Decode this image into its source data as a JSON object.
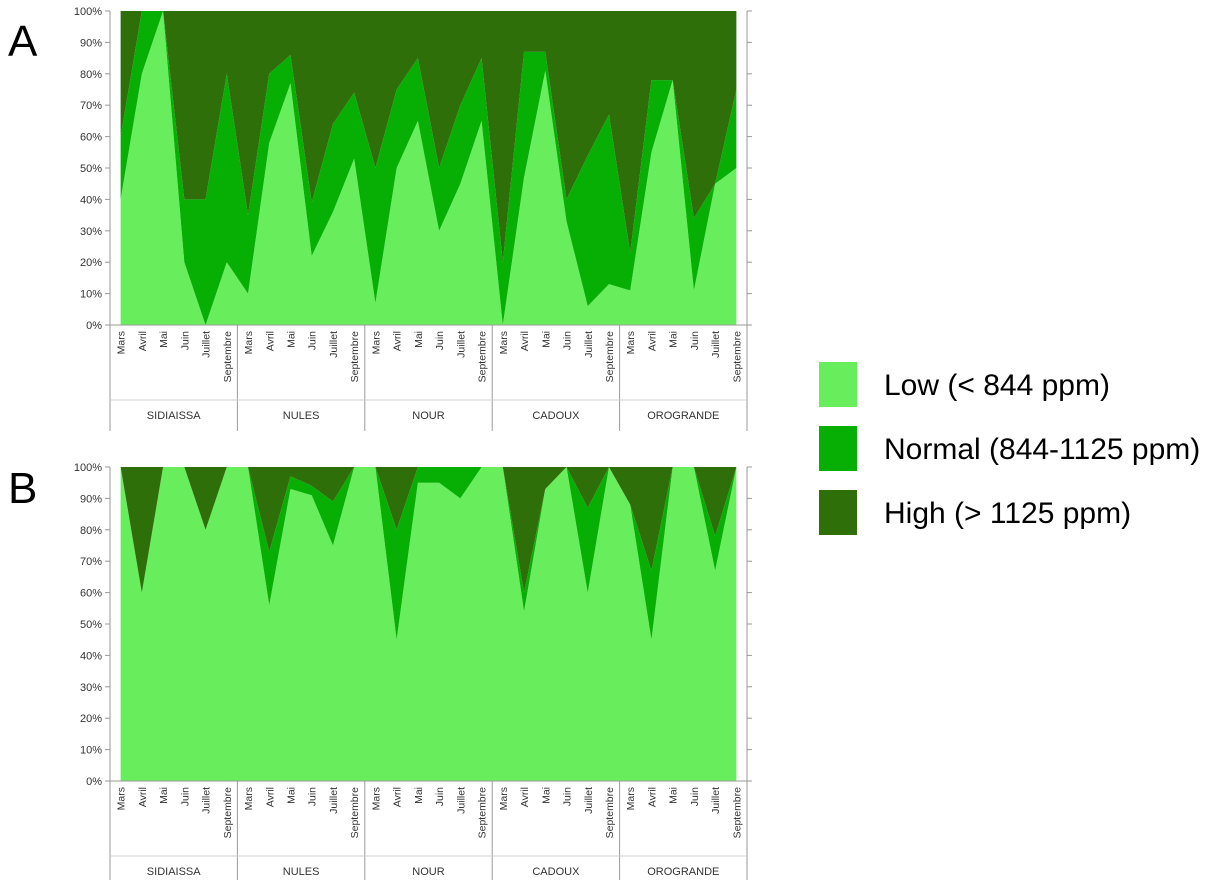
{
  "colors": {
    "low": "#68ee5d",
    "normal": "#07af05",
    "high": "#2f6f0a"
  },
  "legend": [
    {
      "key": "low",
      "label": "Low (< 844 ppm)"
    },
    {
      "key": "normal",
      "label": "Normal (844-1125 ppm)"
    },
    {
      "key": "high",
      "label": "High (> 1125 ppm)"
    }
  ],
  "chart_data": [
    {
      "type": "area",
      "panel": "A",
      "stacked": true,
      "ylim": [
        0,
        100
      ],
      "yticks": [
        "0%",
        "10%",
        "20%",
        "30%",
        "40%",
        "50%",
        "60%",
        "70%",
        "80%",
        "90%",
        "100%"
      ],
      "groups": [
        "SIDIAISSA",
        "NULES",
        "NOUR",
        "CADOUX",
        "OROGRANDE"
      ],
      "months": [
        "Mars",
        "Avril",
        "Mai",
        "Juin",
        "Juillet",
        "Septembre"
      ],
      "series": [
        {
          "name": "Low (< 844 ppm)",
          "key": "low",
          "values": [
            40,
            80,
            100,
            20,
            0,
            20,
            10,
            58,
            77,
            22,
            36,
            53,
            7,
            50,
            65,
            30,
            45,
            65,
            0,
            47,
            81,
            33,
            6,
            13,
            11,
            55,
            78,
            11,
            45,
            50
          ]
        },
        {
          "name": "Normal (844-1125 ppm)",
          "key": "normal",
          "values": [
            20,
            20,
            0,
            20,
            40,
            60,
            25,
            22,
            9,
            17,
            28,
            21,
            43,
            25,
            20,
            20,
            25,
            20,
            20,
            40,
            6,
            7,
            48,
            54,
            12,
            23,
            0,
            23,
            0,
            25
          ]
        },
        {
          "name": "High (> 1125 ppm)",
          "key": "high",
          "values": [
            40,
            0,
            0,
            60,
            60,
            20,
            65,
            20,
            14,
            61,
            36,
            26,
            50,
            25,
            15,
            50,
            30,
            15,
            80,
            13,
            13,
            60,
            46,
            33,
            77,
            22,
            22,
            66,
            55,
            25
          ]
        }
      ]
    },
    {
      "type": "area",
      "panel": "B",
      "stacked": true,
      "ylim": [
        0,
        100
      ],
      "yticks": [
        "0%",
        "10%",
        "20%",
        "30%",
        "40%",
        "50%",
        "60%",
        "70%",
        "80%",
        "90%",
        "100%"
      ],
      "groups": [
        "SIDIAISSA",
        "NULES",
        "NOUR",
        "CADOUX",
        "OROGRANDE"
      ],
      "months": [
        "Mars",
        "Avril",
        "Mai",
        "Juin",
        "Juillet",
        "Septembre"
      ],
      "series": [
        {
          "name": "Low (< 844 ppm)",
          "key": "low",
          "values": [
            100,
            60,
            100,
            100,
            80,
            100,
            100,
            56,
            93,
            91,
            75,
            100,
            100,
            45,
            95,
            95,
            90,
            100,
            100,
            54,
            93,
            100,
            60,
            100,
            88,
            45,
            100,
            100,
            67,
            100
          ]
        },
        {
          "name": "Normal (844-1125 ppm)",
          "key": "normal",
          "values": [
            0,
            0,
            0,
            0,
            0,
            0,
            0,
            17,
            4,
            3,
            14,
            0,
            0,
            35,
            5,
            5,
            10,
            0,
            0,
            6,
            0,
            0,
            27,
            0,
            0,
            22,
            0,
            0,
            11,
            0
          ]
        },
        {
          "name": "High (> 1125 ppm)",
          "key": "high",
          "values": [
            0,
            40,
            0,
            0,
            20,
            0,
            0,
            27,
            3,
            6,
            11,
            0,
            0,
            20,
            0,
            0,
            0,
            0,
            0,
            40,
            7,
            0,
            13,
            0,
            12,
            33,
            0,
            0,
            22,
            0
          ]
        }
      ]
    }
  ]
}
